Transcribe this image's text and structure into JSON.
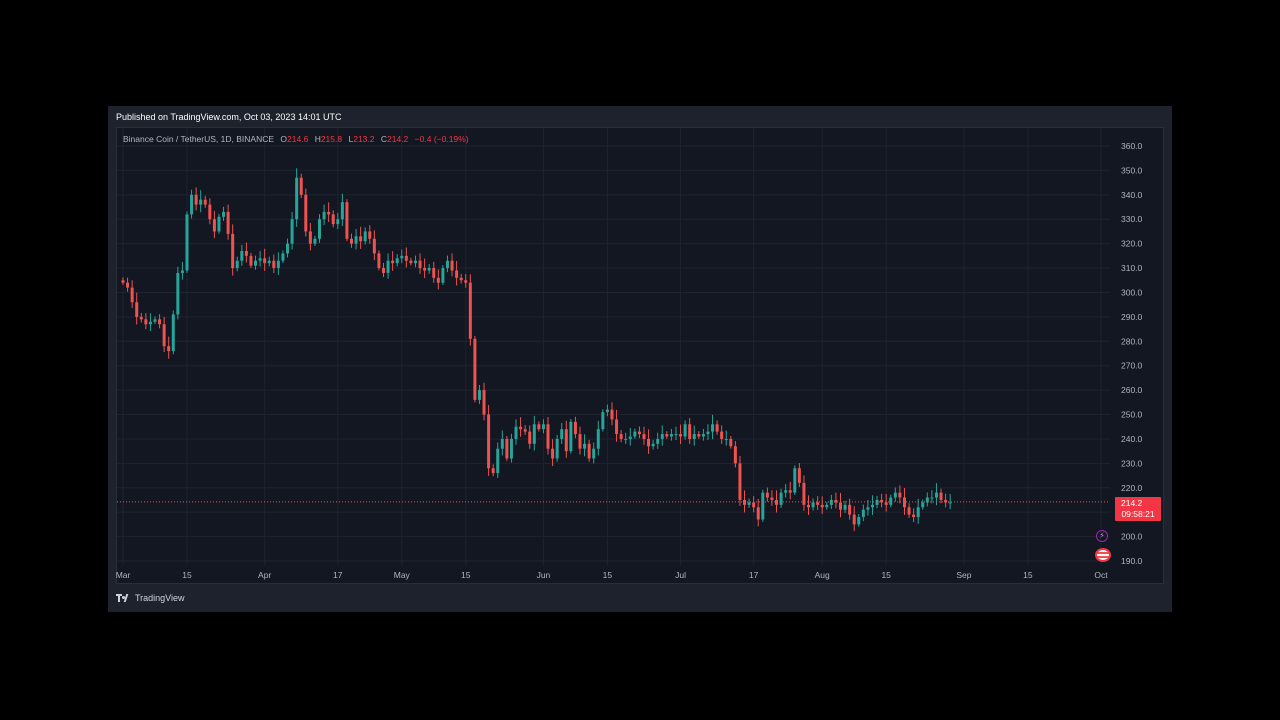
{
  "header": {
    "published": "Published on TradingView.com, Oct 03, 2023 14:01 UTC"
  },
  "legend": {
    "symbol": "Binance Coin / TetherUS, 1D, BINANCE",
    "o_label": "O",
    "o_value": "214.6",
    "h_label": "H",
    "h_value": "215.8",
    "l_label": "L",
    "l_value": "213.2",
    "c_label": "C",
    "c_value": "214.2",
    "change": "−0.4 (−0.19%)"
  },
  "price_tag": {
    "price": "214.2",
    "countdown": "09:58:21"
  },
  "footer": {
    "brand": "TradingView"
  },
  "colors": {
    "up": "#26a69a",
    "down": "#ef5350",
    "background": "#131722",
    "grid": "#1f2330",
    "tag": "#f23645"
  },
  "icons": [
    "lightning-icon",
    "us-flag-icon",
    "tradingview-logo-icon"
  ],
  "chart_data": {
    "type": "candlestick",
    "title": "Binance Coin / TetherUS, 1D, BINANCE",
    "ylim": [
      190,
      360
    ],
    "yticks": [
      "360.0",
      "350.0",
      "340.0",
      "330.0",
      "320.0",
      "310.0",
      "300.0",
      "290.0",
      "280.0",
      "270.0",
      "260.0",
      "250.0",
      "240.0",
      "230.0",
      "220.0",
      "210.0",
      "200.0",
      "190.0"
    ],
    "xticks": [
      {
        "label": "Mar",
        "day": 0
      },
      {
        "label": "15",
        "day": 14
      },
      {
        "label": "Apr",
        "day": 31
      },
      {
        "label": "17",
        "day": 47
      },
      {
        "label": "May",
        "day": 61
      },
      {
        "label": "15",
        "day": 75
      },
      {
        "label": "Jun",
        "day": 92
      },
      {
        "label": "15",
        "day": 106
      },
      {
        "label": "Jul",
        "day": 122
      },
      {
        "label": "17",
        "day": 138
      },
      {
        "label": "Aug",
        "day": 153
      },
      {
        "label": "15",
        "day": 167
      },
      {
        "label": "Sep",
        "day": 184
      },
      {
        "label": "15",
        "day": 198
      },
      {
        "label": "Oct",
        "day": 214
      }
    ],
    "grid": true,
    "last_price": 214.2,
    "closes": [
      304,
      302,
      296,
      290,
      289,
      287,
      288,
      289,
      287,
      278,
      276,
      291,
      308,
      309,
      332,
      340,
      336,
      338,
      336,
      330,
      325,
      331,
      333,
      324,
      310,
      313,
      317,
      315,
      311,
      313,
      314,
      312,
      313,
      310,
      313,
      316,
      320,
      330,
      347,
      340,
      325,
      320,
      322,
      330,
      333,
      332,
      328,
      330,
      337,
      322,
      320,
      323,
      321,
      325,
      322,
      316,
      310,
      308,
      313,
      312,
      314,
      315,
      313,
      312,
      313,
      310,
      309,
      310,
      306,
      304,
      310,
      313,
      309,
      306,
      305,
      304,
      281,
      256,
      260,
      250,
      228,
      226,
      236,
      240,
      232,
      240,
      245,
      244,
      243,
      238,
      246,
      244,
      246,
      236,
      232,
      240,
      244,
      235,
      247,
      242,
      236,
      238,
      232,
      236,
      244,
      251,
      252,
      248,
      242,
      240,
      240,
      241,
      243,
      242,
      240,
      237,
      238,
      240,
      242,
      241,
      242,
      242,
      241,
      246,
      240,
      242,
      241,
      242,
      243,
      246,
      243,
      240,
      240,
      237,
      230,
      215,
      213,
      214,
      212,
      207,
      218,
      216,
      215,
      213,
      218,
      219,
      218,
      228,
      222,
      213,
      212,
      214,
      213,
      212,
      213,
      215,
      214,
      211,
      213,
      209,
      205,
      208,
      211,
      212,
      213,
      215,
      214,
      213,
      216,
      218,
      216,
      212,
      209,
      208,
      212,
      214,
      216,
      216,
      218,
      215,
      214,
      214
    ]
  }
}
